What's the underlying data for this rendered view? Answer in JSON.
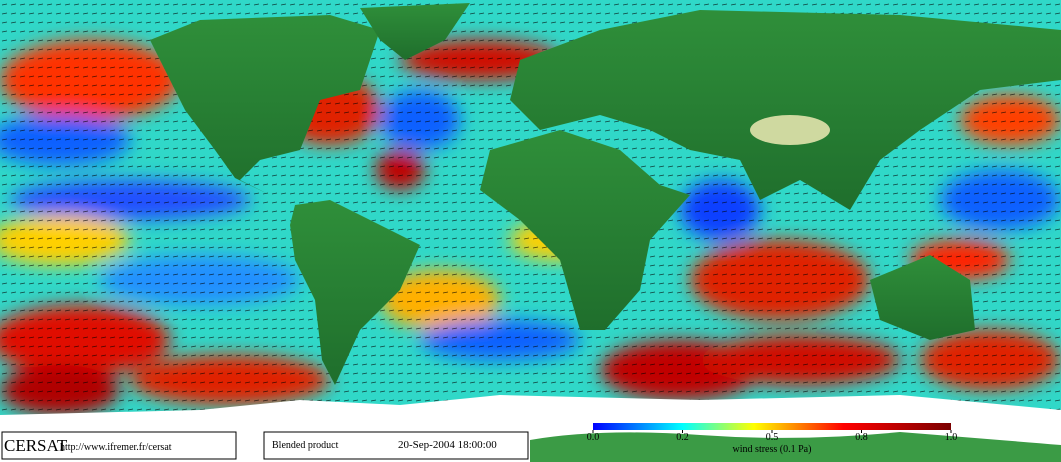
{
  "logo": "CERSAT",
  "url": "http://www.ifremer.fr/cersat",
  "product": "Blended product",
  "timestamp": "20-Sep-2004 18:00:00",
  "colorbar": {
    "ticks": [
      {
        "value": 0,
        "label": "0.0"
      },
      0.2,
      0.5,
      0.8,
      {
        "value": 1,
        "label": "1.0"
      }
    ],
    "label": "wind stress (0.1 Pa)"
  }
}
